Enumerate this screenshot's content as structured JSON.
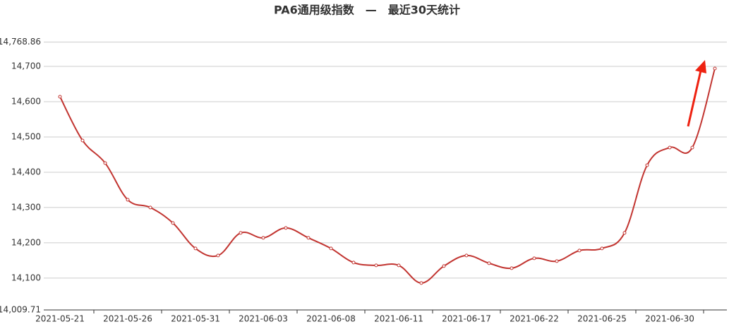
{
  "chart_data": {
    "type": "line",
    "title": "PA6通用级指数　—　最近30天统计",
    "categories": [
      "2021-05-21",
      null,
      null,
      "2021-05-26",
      null,
      null,
      "2021-05-31",
      null,
      null,
      "2021-06-03",
      null,
      null,
      "2021-06-08",
      null,
      null,
      "2021-06-11",
      null,
      null,
      "2021-06-17",
      null,
      null,
      "2021-06-22",
      null,
      null,
      "2021-06-25",
      null,
      null,
      "2021-06-30",
      null,
      null
    ],
    "series": [
      {
        "color": "#c23531",
        "values": [
          14614,
          14490,
          14426,
          14322,
          14300,
          14256,
          14184,
          14164,
          14228,
          14214,
          14242,
          14214,
          14184,
          14144,
          14136,
          14136,
          14086,
          14134,
          14164,
          14142,
          14128,
          14156,
          14148,
          14178,
          14184,
          14228,
          14420,
          14470,
          14470,
          14694
        ]
      }
    ],
    "ylim": [
      14009.71,
      14768.86
    ],
    "yticks": [
      {
        "value": 14009.71,
        "label": "14,009.71"
      },
      {
        "value": 14100,
        "label": "14,100"
      },
      {
        "value": 14200,
        "label": "14,200"
      },
      {
        "value": 14300,
        "label": "14,300"
      },
      {
        "value": 14400,
        "label": "14,400"
      },
      {
        "value": 14500,
        "label": "14,500"
      },
      {
        "value": 14600,
        "label": "14,600"
      },
      {
        "value": 14700,
        "label": "14,700"
      },
      {
        "value": 14768.86,
        "label": "14,768.86"
      }
    ],
    "grid": true
  }
}
